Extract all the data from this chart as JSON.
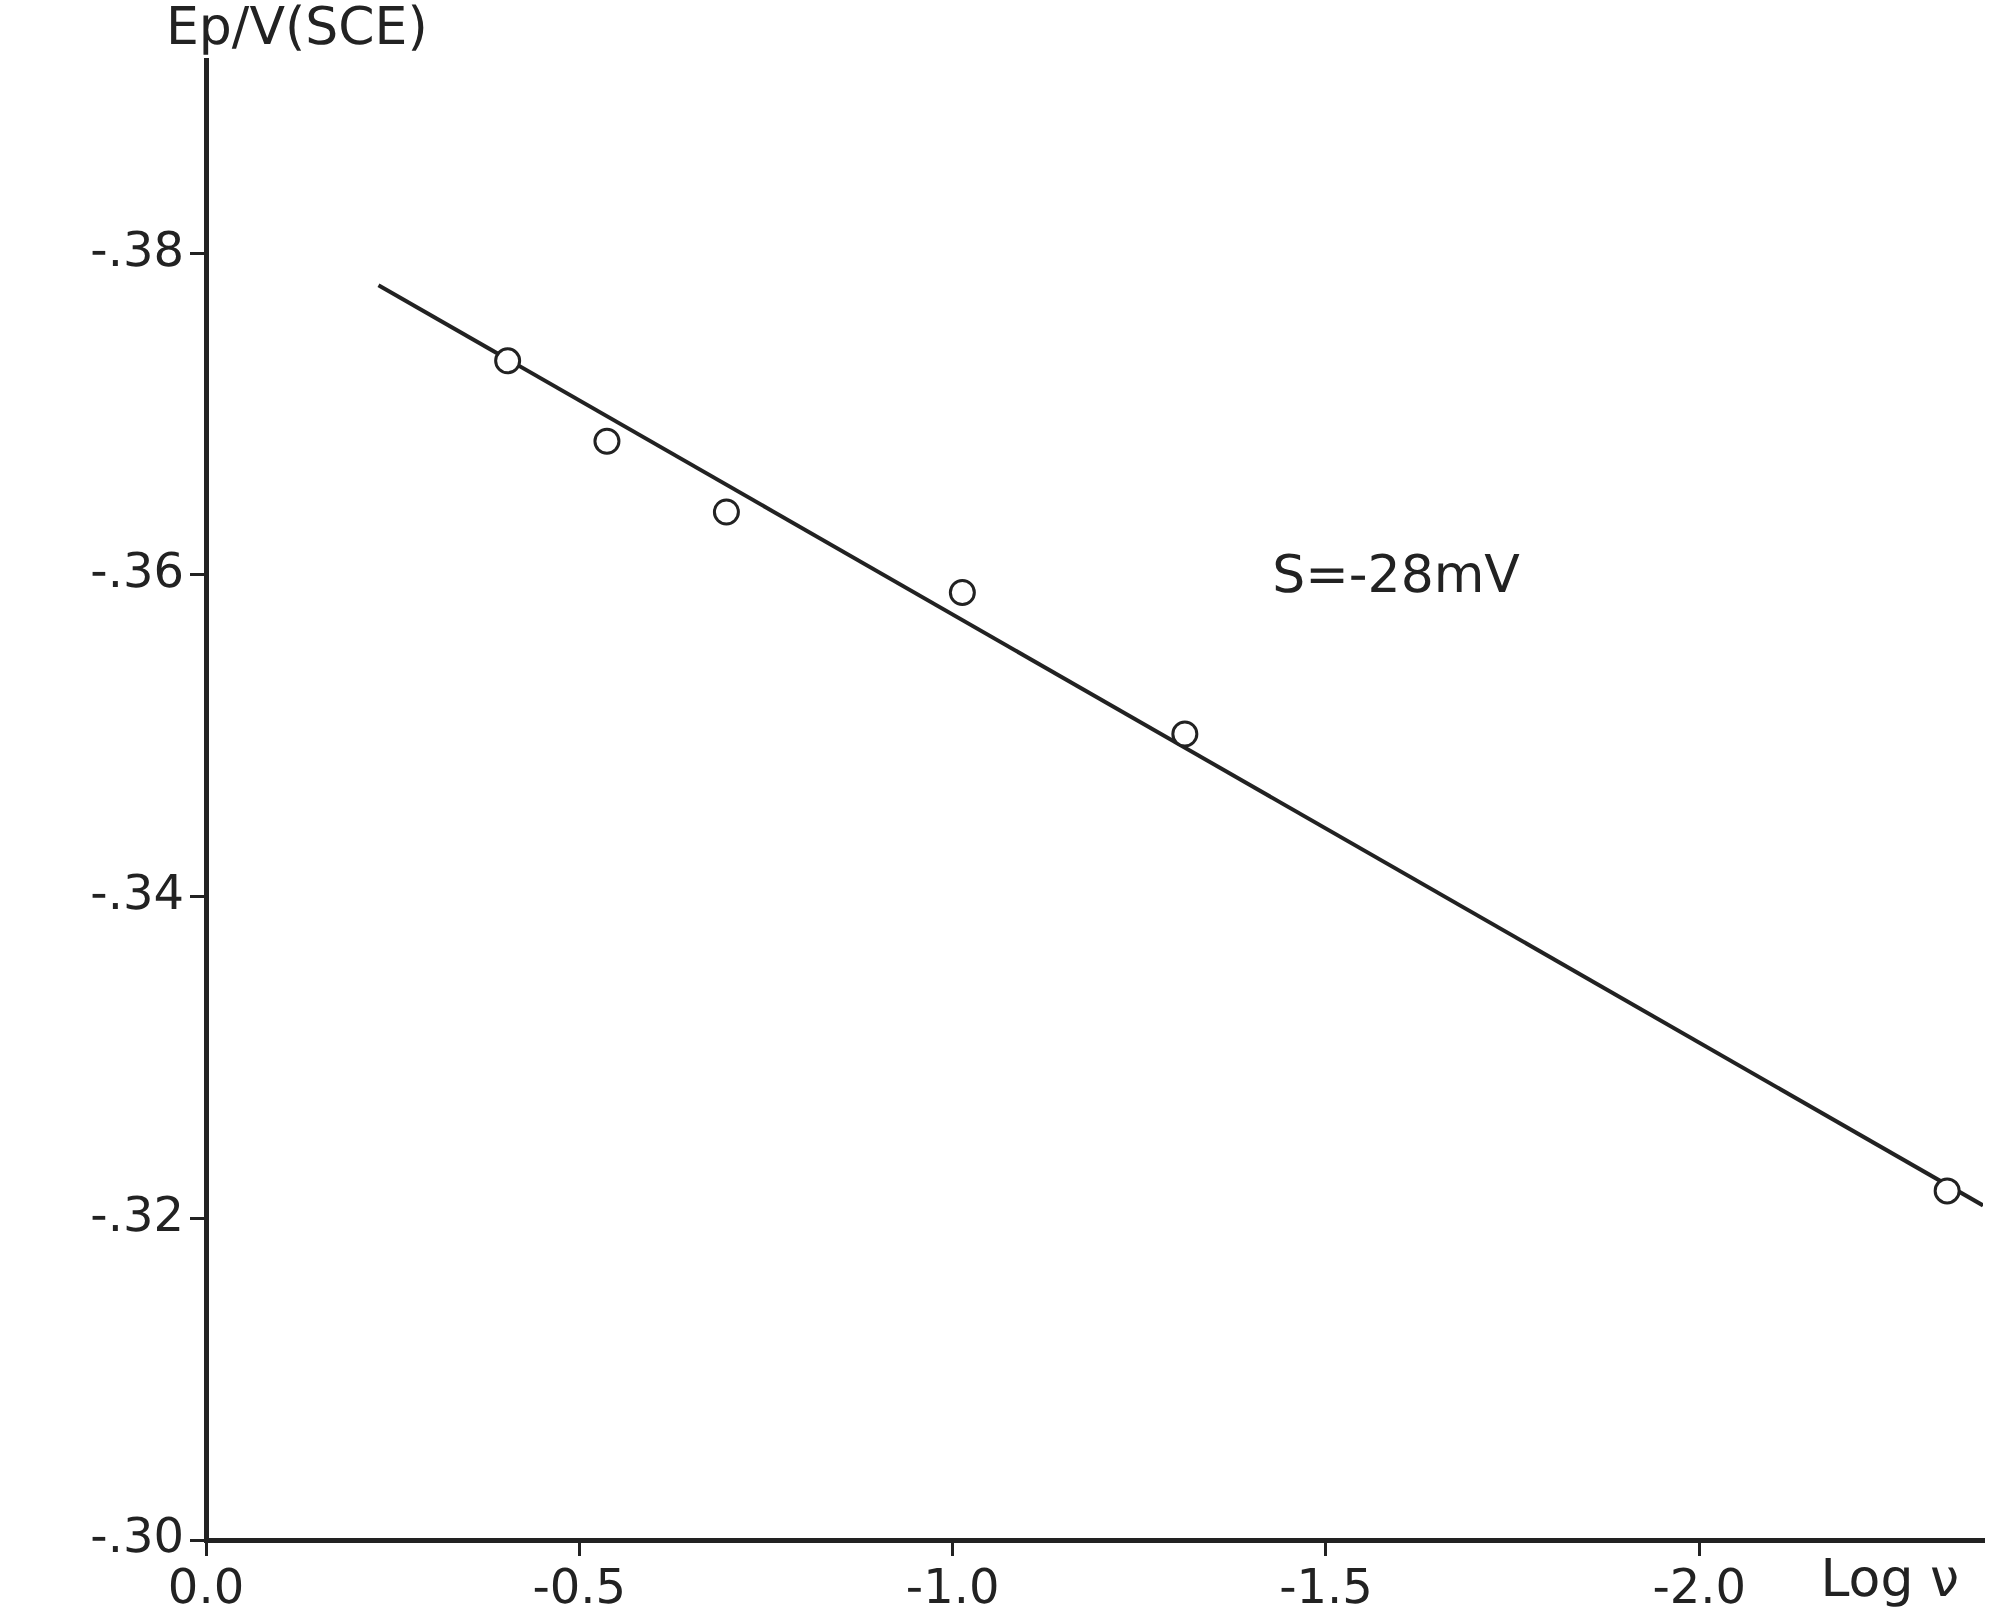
{
  "chart_data": {
    "type": "scatter",
    "xlabel": "Log ν",
    "ylabel": "Ep/V(SCE)",
    "xlim": [
      0,
      -2.38
    ],
    "ylim": [
      -0.3,
      -0.392
    ],
    "xticks": [
      {
        "value": 0,
        "label": "0.0"
      },
      {
        "value": -0.5,
        "label": "-0.5"
      },
      {
        "value": -1,
        "label": "-1.0"
      },
      {
        "value": -1.5,
        "label": "-1.5"
      },
      {
        "value": -2,
        "label": "-2.0"
      }
    ],
    "yticks": [
      {
        "value": -0.3,
        "label": "-.30"
      },
      {
        "value": -0.32,
        "label": "-.32"
      },
      {
        "value": -0.34,
        "label": "-.34"
      },
      {
        "value": -0.36,
        "label": "-.36"
      },
      {
        "value": -0.38,
        "label": "-.38"
      }
    ],
    "series": [
      {
        "type": "scatter",
        "color": "#222222",
        "marker": "circle",
        "x": [
          -0.404,
          -0.537,
          -0.697,
          -1.013,
          -1.311,
          -2.332
        ],
        "values": [
          -0.3733,
          -0.3683,
          -0.3639,
          -0.3589,
          -0.3501,
          -0.3217
        ]
      },
      {
        "type": "line",
        "color": "#222222",
        "marker": "none",
        "line_style": "solid",
        "x": [
          -0.231,
          -2.38
        ],
        "values": [
          -0.378,
          -0.3208
        ]
      }
    ],
    "annotations": [
      "S=-28mV"
    ],
    "grid": false,
    "legend": false
  }
}
